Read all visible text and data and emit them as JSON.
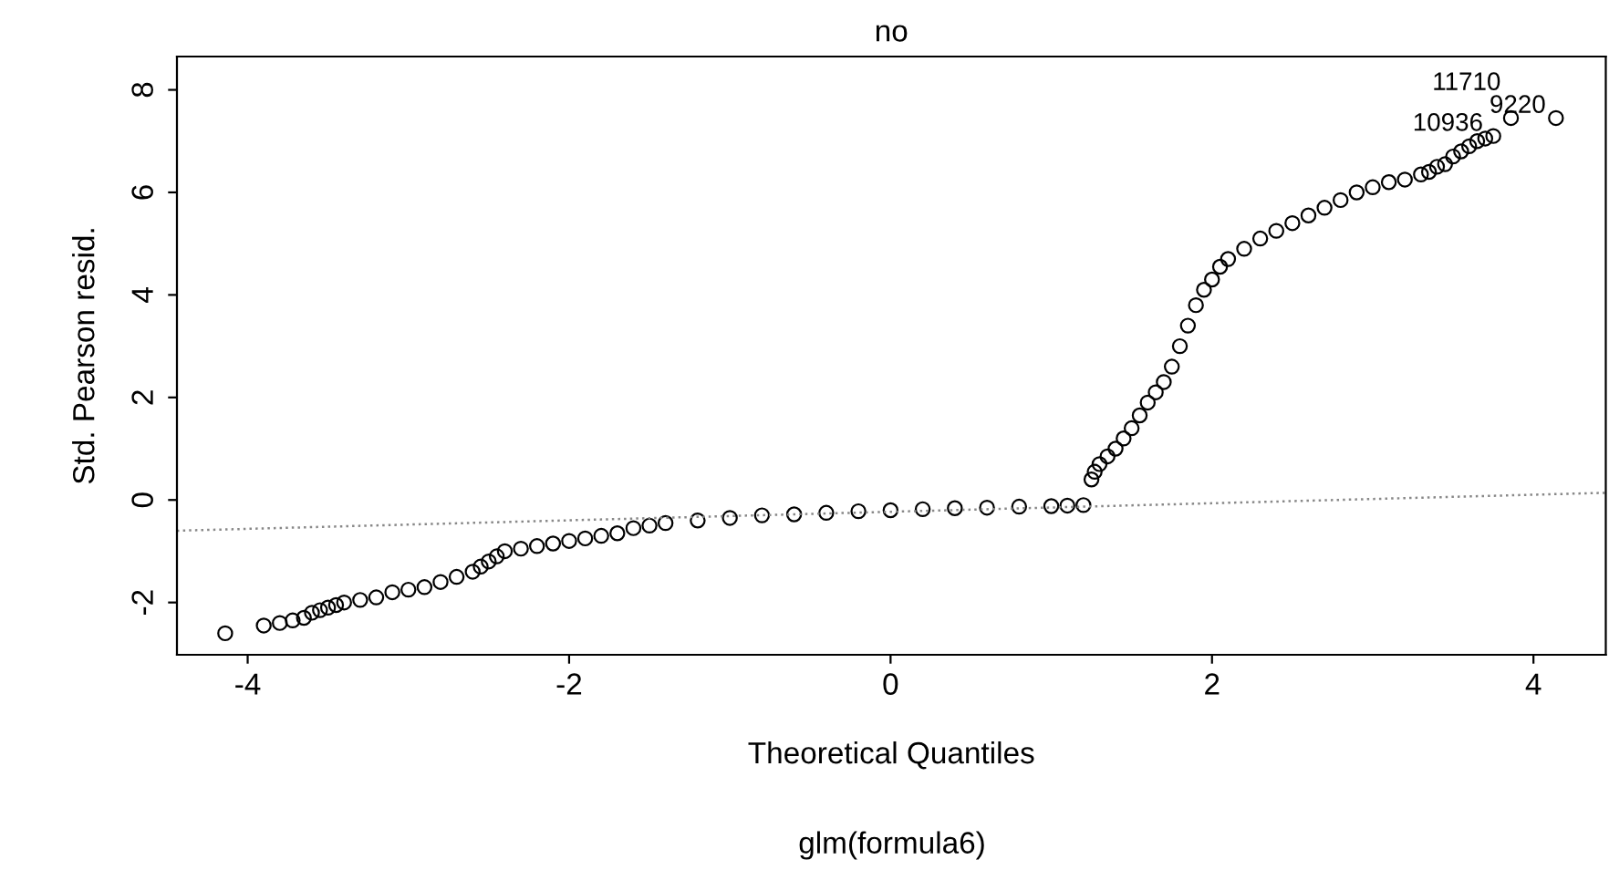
{
  "chart_data": {
    "type": "scatter",
    "title": "no",
    "xlabel": "Theoretical Quantiles",
    "ylabel": "Std. Pearson resid.",
    "annotations": [
      "glm(formula6)",
      {
        "text": "11710",
        "x": 3.86,
        "y": 7.45
      },
      {
        "text": "9220",
        "x": 4.14,
        "y": 7.45
      },
      {
        "text": "10936",
        "x": 3.75,
        "y": 7.1
      }
    ],
    "series": [
      {
        "color": "#000000",
        "marker": "circle",
        "x": [
          -4.14,
          -3.9,
          -3.8,
          -3.72,
          -3.65,
          -3.6,
          -3.55,
          -3.5,
          -3.45,
          -3.4,
          -3.3,
          -3.2,
          -3.1,
          -3.0,
          -2.9,
          -2.8,
          -2.7,
          -2.6,
          -2.55,
          -2.5,
          -2.45,
          -2.4,
          -2.3,
          -2.2,
          -2.1,
          -2.0,
          -1.9,
          -1.8,
          -1.7,
          -1.6,
          -1.5,
          -1.4,
          -1.2,
          -1.0,
          -0.8,
          -0.6,
          -0.4,
          -0.2,
          0.0,
          0.2,
          0.4,
          0.6,
          0.8,
          1.0,
          1.1,
          1.2,
          1.25,
          1.27,
          1.3,
          1.35,
          1.4,
          1.45,
          1.5,
          1.55,
          1.6,
          1.65,
          1.7,
          1.75,
          1.8,
          1.85,
          1.9,
          1.95,
          2.0,
          2.05,
          2.1,
          2.2,
          2.3,
          2.4,
          2.5,
          2.6,
          2.7,
          2.8,
          2.9,
          3.0,
          3.1,
          3.2,
          3.3,
          3.35,
          3.4,
          3.45,
          3.5,
          3.55,
          3.6,
          3.65,
          3.7,
          3.75,
          3.86,
          4.14
        ],
        "values": [
          -2.6,
          -2.45,
          -2.4,
          -2.35,
          -2.3,
          -2.2,
          -2.15,
          -2.1,
          -2.05,
          -2.0,
          -1.95,
          -1.9,
          -1.8,
          -1.75,
          -1.7,
          -1.6,
          -1.5,
          -1.4,
          -1.3,
          -1.2,
          -1.1,
          -1.0,
          -0.95,
          -0.9,
          -0.85,
          -0.8,
          -0.75,
          -0.7,
          -0.65,
          -0.55,
          -0.5,
          -0.45,
          -0.4,
          -0.35,
          -0.3,
          -0.28,
          -0.25,
          -0.22,
          -0.2,
          -0.18,
          -0.16,
          -0.15,
          -0.13,
          -0.12,
          -0.11,
          -0.1,
          0.4,
          0.55,
          0.7,
          0.85,
          1.0,
          1.2,
          1.4,
          1.65,
          1.9,
          2.1,
          2.3,
          2.6,
          3.0,
          3.4,
          3.8,
          4.1,
          4.3,
          4.55,
          4.7,
          4.9,
          5.1,
          5.25,
          5.4,
          5.55,
          5.7,
          5.85,
          6.0,
          6.1,
          6.2,
          6.25,
          6.35,
          6.4,
          6.5,
          6.55,
          6.7,
          6.8,
          6.9,
          7.0,
          7.05,
          7.1,
          7.45,
          7.45
        ]
      },
      {
        "type": "line",
        "color": "#888888",
        "line_style": "dotted",
        "marker": "none",
        "x": [
          -4.44,
          4.45
        ],
        "values": [
          -0.6,
          0.14
        ]
      }
    ],
    "xlim": [
      -4.44,
      4.45
    ],
    "ylim": [
      -3.02,
      8.65
    ],
    "xticks": [
      -4,
      -2,
      0,
      2,
      4
    ],
    "yticks": [
      -2,
      0,
      2,
      4,
      6,
      8
    ],
    "grid": false,
    "legend": false
  }
}
